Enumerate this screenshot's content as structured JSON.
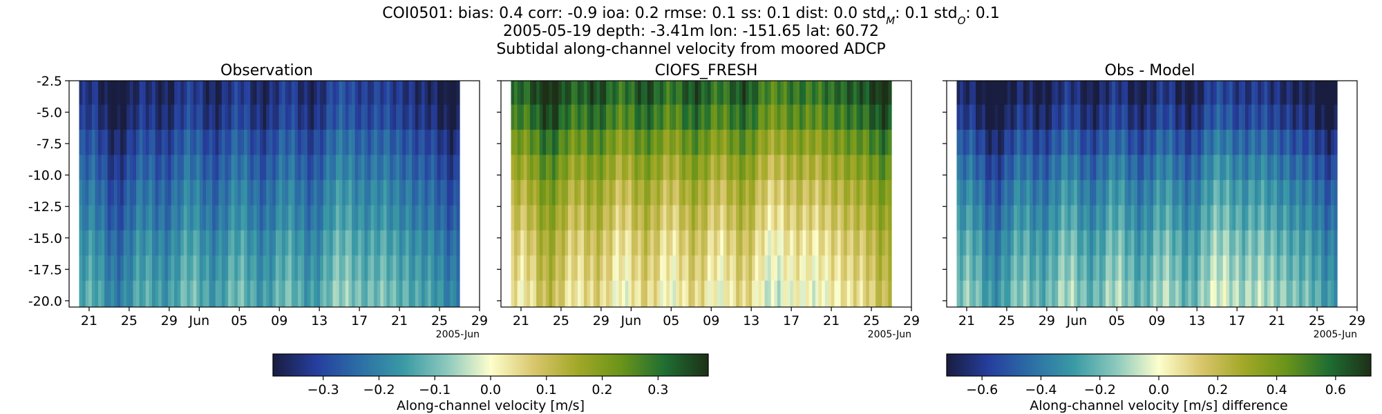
{
  "header": {
    "title_line1": "COI0501: bias: 0.4  corr: -0.9  ioa: 0.2  rmse: 0.1  ss: 0.1  dist: 0.0  std",
    "title_sub_m": "M",
    "title_mid": ": 0.1  std",
    "title_sub_o": "O",
    "title_tail": ": 0.1",
    "title_line2": "2005-05-19 depth: -3.41m lon: -151.65 lat: 60.72",
    "title_line3": "Subtidal along-channel velocity from moored ADCP"
  },
  "chart_data": [
    {
      "type": "heatmap",
      "title": "Observation",
      "x_tick_labels": [
        "21",
        "25",
        "29",
        "Jun",
        "05",
        "09",
        "13",
        "17",
        "21",
        "25",
        "29"
      ],
      "x_offset_label": "2005-Jun",
      "y_tick_labels": [
        "-2.5",
        "-5.0",
        "-7.5",
        "-10.0",
        "-12.5",
        "-15.0",
        "-17.5",
        "-20.0"
      ],
      "ylim": [
        -20.5,
        -2.5
      ],
      "xlim": [
        "2005-05-19",
        "2005-06-29"
      ],
      "data_x_range": [
        "2005-05-20",
        "2005-06-27"
      ],
      "colormap": "delta",
      "clim": [
        -0.39,
        0.39
      ],
      "depth_bins": [
        -3.4,
        -5.4,
        -7.4,
        -9.4,
        -11.4,
        -13.4,
        -15.4,
        -17.4,
        -19.4
      ],
      "approx_values_by_depth": [
        -0.34,
        -0.32,
        -0.28,
        -0.25,
        -0.22,
        -0.2,
        -0.17,
        -0.15,
        -0.13
      ]
    },
    {
      "type": "heatmap",
      "title": "CIOFS_FRESH",
      "x_tick_labels": [
        "21",
        "25",
        "29",
        "Jun",
        "05",
        "09",
        "13",
        "17",
        "21",
        "25",
        "29"
      ],
      "x_offset_label": "2005-Jun",
      "ylim": [
        -20.5,
        -2.5
      ],
      "xlim": [
        "2005-05-19",
        "2005-06-29"
      ],
      "data_x_range": [
        "2005-05-20",
        "2005-06-27"
      ],
      "colormap": "delta",
      "clim": [
        -0.39,
        0.39
      ],
      "depth_bins": [
        -3.4,
        -5.4,
        -7.4,
        -9.4,
        -11.4,
        -13.4,
        -15.4,
        -17.4,
        -19.4
      ],
      "approx_values_by_depth": [
        0.32,
        0.28,
        0.22,
        0.17,
        0.13,
        0.1,
        0.07,
        0.05,
        0.03
      ]
    },
    {
      "type": "heatmap",
      "title": "Obs - Model",
      "x_tick_labels": [
        "21",
        "25",
        "29",
        "Jun",
        "05",
        "09",
        "13",
        "17",
        "21",
        "25",
        "29"
      ],
      "x_offset_label": "2005-Jun",
      "ylim": [
        -20.5,
        -2.5
      ],
      "xlim": [
        "2005-05-19",
        "2005-06-29"
      ],
      "data_x_range": [
        "2005-05-20",
        "2005-06-27"
      ],
      "colormap": "delta",
      "clim": [
        -0.72,
        0.72
      ],
      "depth_bins": [
        -3.4,
        -5.4,
        -7.4,
        -9.4,
        -11.4,
        -13.4,
        -15.4,
        -17.4,
        -19.4
      ],
      "approx_values_by_depth": [
        -0.66,
        -0.6,
        -0.5,
        -0.42,
        -0.35,
        -0.3,
        -0.24,
        -0.2,
        -0.16
      ]
    }
  ],
  "colorbars": [
    {
      "label": "Along-channel velocity [m/s]",
      "clim": [
        -0.39,
        0.39
      ],
      "ticks": [
        -0.3,
        -0.2,
        -0.1,
        0.0,
        0.1,
        0.2,
        0.3
      ],
      "tick_labels": [
        "−0.3",
        "−0.2",
        "−0.1",
        "0.0",
        "0.1",
        "0.2",
        "0.3"
      ]
    },
    {
      "label": "Along-channel velocity [m/s] difference",
      "clim": [
        -0.72,
        0.72
      ],
      "ticks": [
        -0.6,
        -0.4,
        -0.2,
        0.0,
        0.2,
        0.4,
        0.6
      ],
      "tick_labels": [
        "−0.6",
        "−0.4",
        "−0.2",
        "0.0",
        "0.2",
        "0.4",
        "0.6"
      ]
    }
  ],
  "colormap_stops": [
    "#191d3f",
    "#263e9e",
    "#2c6fa6",
    "#3a9aa5",
    "#8cc9bd",
    "#fdfecc",
    "#d8c66c",
    "#a2a827",
    "#6a941a",
    "#1f6e32",
    "#1d3017"
  ]
}
